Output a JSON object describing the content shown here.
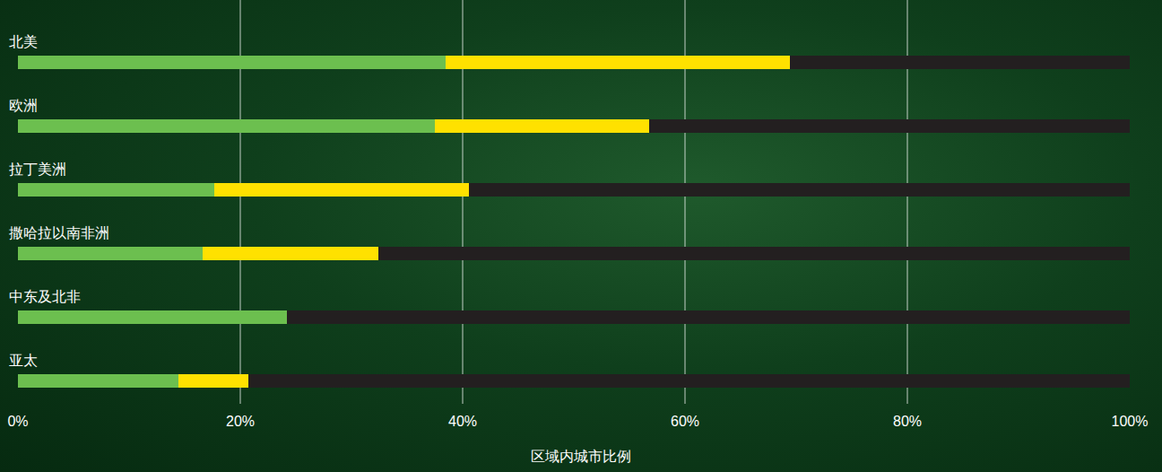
{
  "chart_data": {
    "type": "bar",
    "orientation": "horizontal",
    "stacked": true,
    "categories": [
      "北美",
      "欧洲",
      "拉丁美洲",
      "撒哈拉以南非洲",
      "中东及北非",
      "亚太"
    ],
    "series": [
      {
        "color": "#6cbf4f",
        "values": [
          38.5,
          37.5,
          17.7,
          16.6,
          24.2,
          14.4
        ]
      },
      {
        "color": "#ffe100",
        "values": [
          30.9,
          19.3,
          22.9,
          15.8,
          0,
          6.3
        ]
      },
      {
        "color": "#231f20",
        "values": [
          30.6,
          43.2,
          59.4,
          67.6,
          75.8,
          79.3
        ]
      }
    ],
    "xlim": [
      0,
      100
    ],
    "xticks": [
      {
        "value": 0,
        "label": "0%"
      },
      {
        "value": 20,
        "label": "20%"
      },
      {
        "value": 40,
        "label": "40%"
      },
      {
        "value": 60,
        "label": "60%"
      },
      {
        "value": 80,
        "label": "80%"
      },
      {
        "value": 100,
        "label": "100%"
      }
    ],
    "xlabel": "区域内城市比例",
    "grid": true
  }
}
